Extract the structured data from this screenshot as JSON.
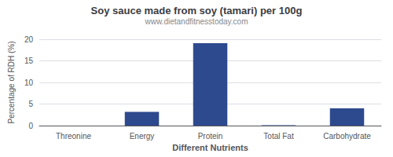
{
  "chart_data": {
    "type": "bar",
    "title": "Soy sauce made from soy (tamari) per 100g",
    "subtitle": "www.dietandfitnesstoday.com",
    "xlabel": "Different Nutrients",
    "ylabel": "Percentage of RDH (%)",
    "categories": [
      "Threonine",
      "Energy",
      "Protein",
      "Total Fat",
      "Carbohydrate"
    ],
    "values": [
      0.0,
      3.2,
      19.1,
      0.1,
      4.0
    ],
    "color": "#2e4a8e",
    "ylim": [
      0,
      20
    ],
    "yticks": [
      0,
      5,
      10,
      15,
      20
    ],
    "grid": true
  }
}
